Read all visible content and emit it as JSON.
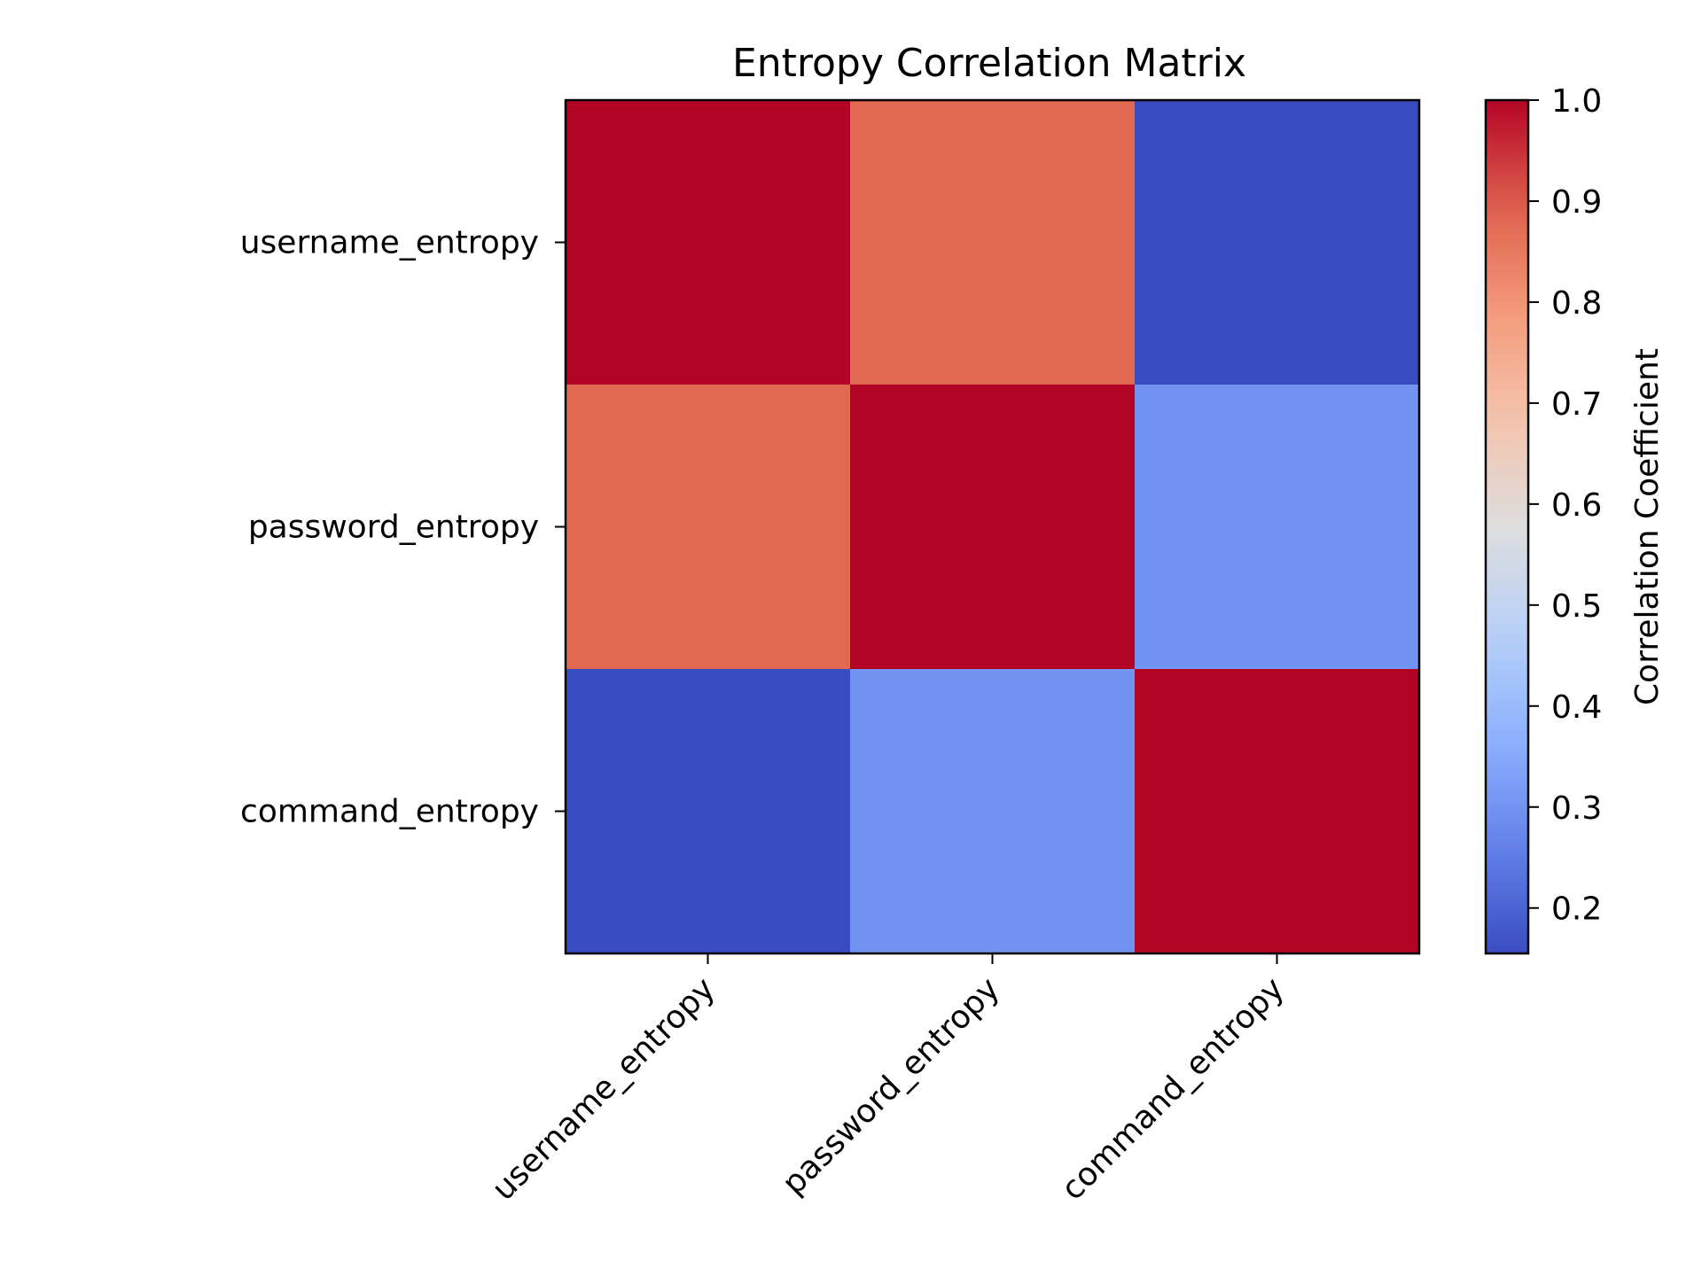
{
  "chart_data": {
    "type": "heatmap",
    "title": "Entropy Correlation Matrix",
    "xlabel": "",
    "ylabel": "",
    "x_categories": [
      "username_entropy",
      "password_entropy",
      "command_entropy"
    ],
    "y_categories": [
      "username_entropy",
      "password_entropy",
      "command_entropy"
    ],
    "values": [
      [
        1.0,
        0.88,
        0.155
      ],
      [
        0.88,
        1.0,
        0.3
      ],
      [
        0.155,
        0.3,
        1.0
      ]
    ],
    "colormap": "coolwarm",
    "colorbar": {
      "label": "Correlation Coefficient",
      "range": [
        0.155,
        1.0
      ],
      "ticks": [
        0.2,
        0.3,
        0.4,
        0.5,
        0.6,
        0.7,
        0.8,
        0.9,
        1.0
      ],
      "tick_labels": [
        "0.2",
        "0.3",
        "0.4",
        "0.5",
        "0.6",
        "0.7",
        "0.8",
        "0.9",
        "1.0"
      ]
    },
    "grid": false
  }
}
